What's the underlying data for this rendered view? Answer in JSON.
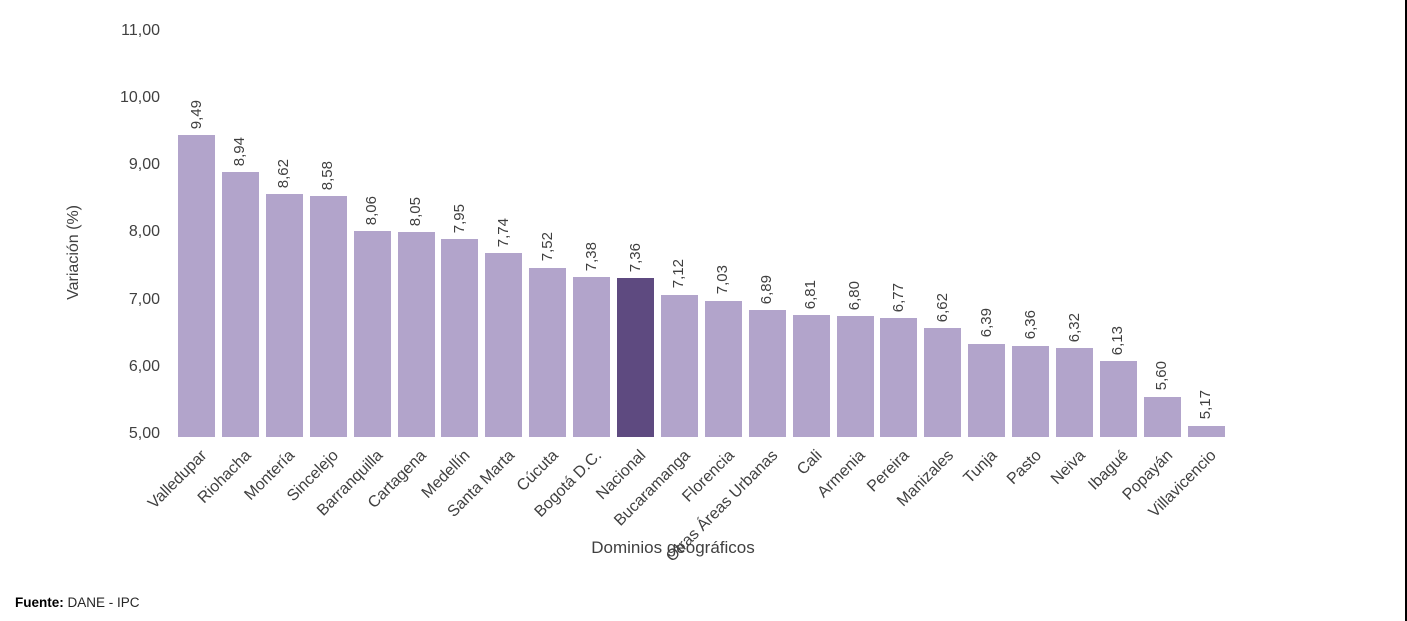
{
  "chart_data": {
    "type": "bar",
    "title": "",
    "xlabel": "Dominios geográficos",
    "ylabel": "Variación (%)",
    "ylim": [
      5,
      11
    ],
    "ytick_labels": [
      "5,00",
      "6,00",
      "7,00",
      "8,00",
      "9,00",
      "10,00",
      "11,00"
    ],
    "grid": false,
    "legend": "none",
    "categories": [
      "Valledupar",
      "Riohacha",
      "Montería",
      "Sincelejo",
      "Barranquilla",
      "Cartagena",
      "Medellín",
      "Santa Marta",
      "Cúcuta",
      "Bogotá D.C.",
      "Nacional",
      "Bucaramanga",
      "Florencia",
      "Otras Áreas Urbanas",
      "Cali",
      "Armenia",
      "Pereira",
      "Manizales",
      "Tunja",
      "Pasto",
      "Neiva",
      "Ibagué",
      "Popayán",
      "Villavicencio"
    ],
    "values": [
      9.49,
      8.94,
      8.62,
      8.58,
      8.06,
      8.05,
      7.95,
      7.74,
      7.52,
      7.38,
      7.36,
      7.12,
      7.03,
      6.89,
      6.81,
      6.8,
      6.77,
      6.62,
      6.39,
      6.36,
      6.32,
      6.13,
      5.6,
      5.17
    ],
    "value_labels": [
      "9,49",
      "8,94",
      "8,62",
      "8,58",
      "8,06",
      "8,05",
      "7,95",
      "7,74",
      "7,52",
      "7,38",
      "7,36",
      "7,12",
      "7,03",
      "6,89",
      "6,81",
      "6,80",
      "6,77",
      "6,62",
      "6,39",
      "6,36",
      "6,32",
      "6,13",
      "5,60",
      "5,17"
    ],
    "highlight_category": "Nacional",
    "highlight_index": 10,
    "colors": {
      "bar": "#b2a4cb",
      "highlight": "#5e4a80",
      "text": "#404040"
    }
  },
  "footer": {
    "fuente_label": "Fuente:",
    "fuente_text": " DANE - IPC"
  }
}
